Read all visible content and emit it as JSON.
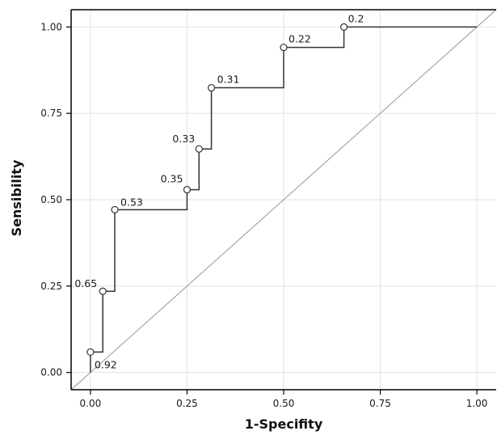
{
  "chart_data": {
    "type": "line",
    "xlabel": "1-Specifity",
    "ylabel": "Sensibility",
    "xlim": [
      -0.05,
      1.05
    ],
    "ylim": [
      -0.05,
      1.05
    ],
    "x_ticks": [
      0.0,
      0.25,
      0.5,
      0.75,
      1.0
    ],
    "x_tick_labels": [
      "0.00",
      "0.25",
      "0.50",
      "0.75",
      "1.00"
    ],
    "y_ticks": [
      0.0,
      0.25,
      0.5,
      0.75,
      1.0
    ],
    "y_tick_labels": [
      "0.00",
      "0.25",
      "0.50",
      "0.75",
      "1.00"
    ],
    "grid": true,
    "line_style": "step",
    "series": [
      {
        "x": [
          0.0,
          0.0,
          0.032,
          0.032,
          0.063,
          0.063,
          0.25,
          0.25,
          0.281,
          0.281,
          0.313,
          0.313,
          0.5,
          0.5,
          0.656,
          0.656,
          1.0
        ],
        "y": [
          0.0,
          0.059,
          0.059,
          0.235,
          0.235,
          0.471,
          0.471,
          0.529,
          0.529,
          0.647,
          0.647,
          0.824,
          0.824,
          0.941,
          0.941,
          1.0,
          1.0
        ]
      }
    ],
    "points": [
      {
        "x": 0.0,
        "y": 0.059,
        "label": "0.92"
      },
      {
        "x": 0.032,
        "y": 0.235,
        "label": "0.65"
      },
      {
        "x": 0.063,
        "y": 0.471,
        "label": "0.53"
      },
      {
        "x": 0.25,
        "y": 0.529,
        "label": "0.35"
      },
      {
        "x": 0.281,
        "y": 0.647,
        "label": "0.33"
      },
      {
        "x": 0.313,
        "y": 0.824,
        "label": "0.31"
      },
      {
        "x": 0.5,
        "y": 0.941,
        "label": "0.22"
      },
      {
        "x": 0.656,
        "y": 1.0,
        "label": "0.2"
      }
    ],
    "reference_line": {
      "x": [
        -0.05,
        1.05
      ],
      "y": [
        -0.05,
        1.05
      ]
    },
    "colors": {
      "curve": "#333333",
      "reference": "#a8a8a8",
      "grid": "#e2e2e2",
      "frame": "#000000"
    }
  }
}
